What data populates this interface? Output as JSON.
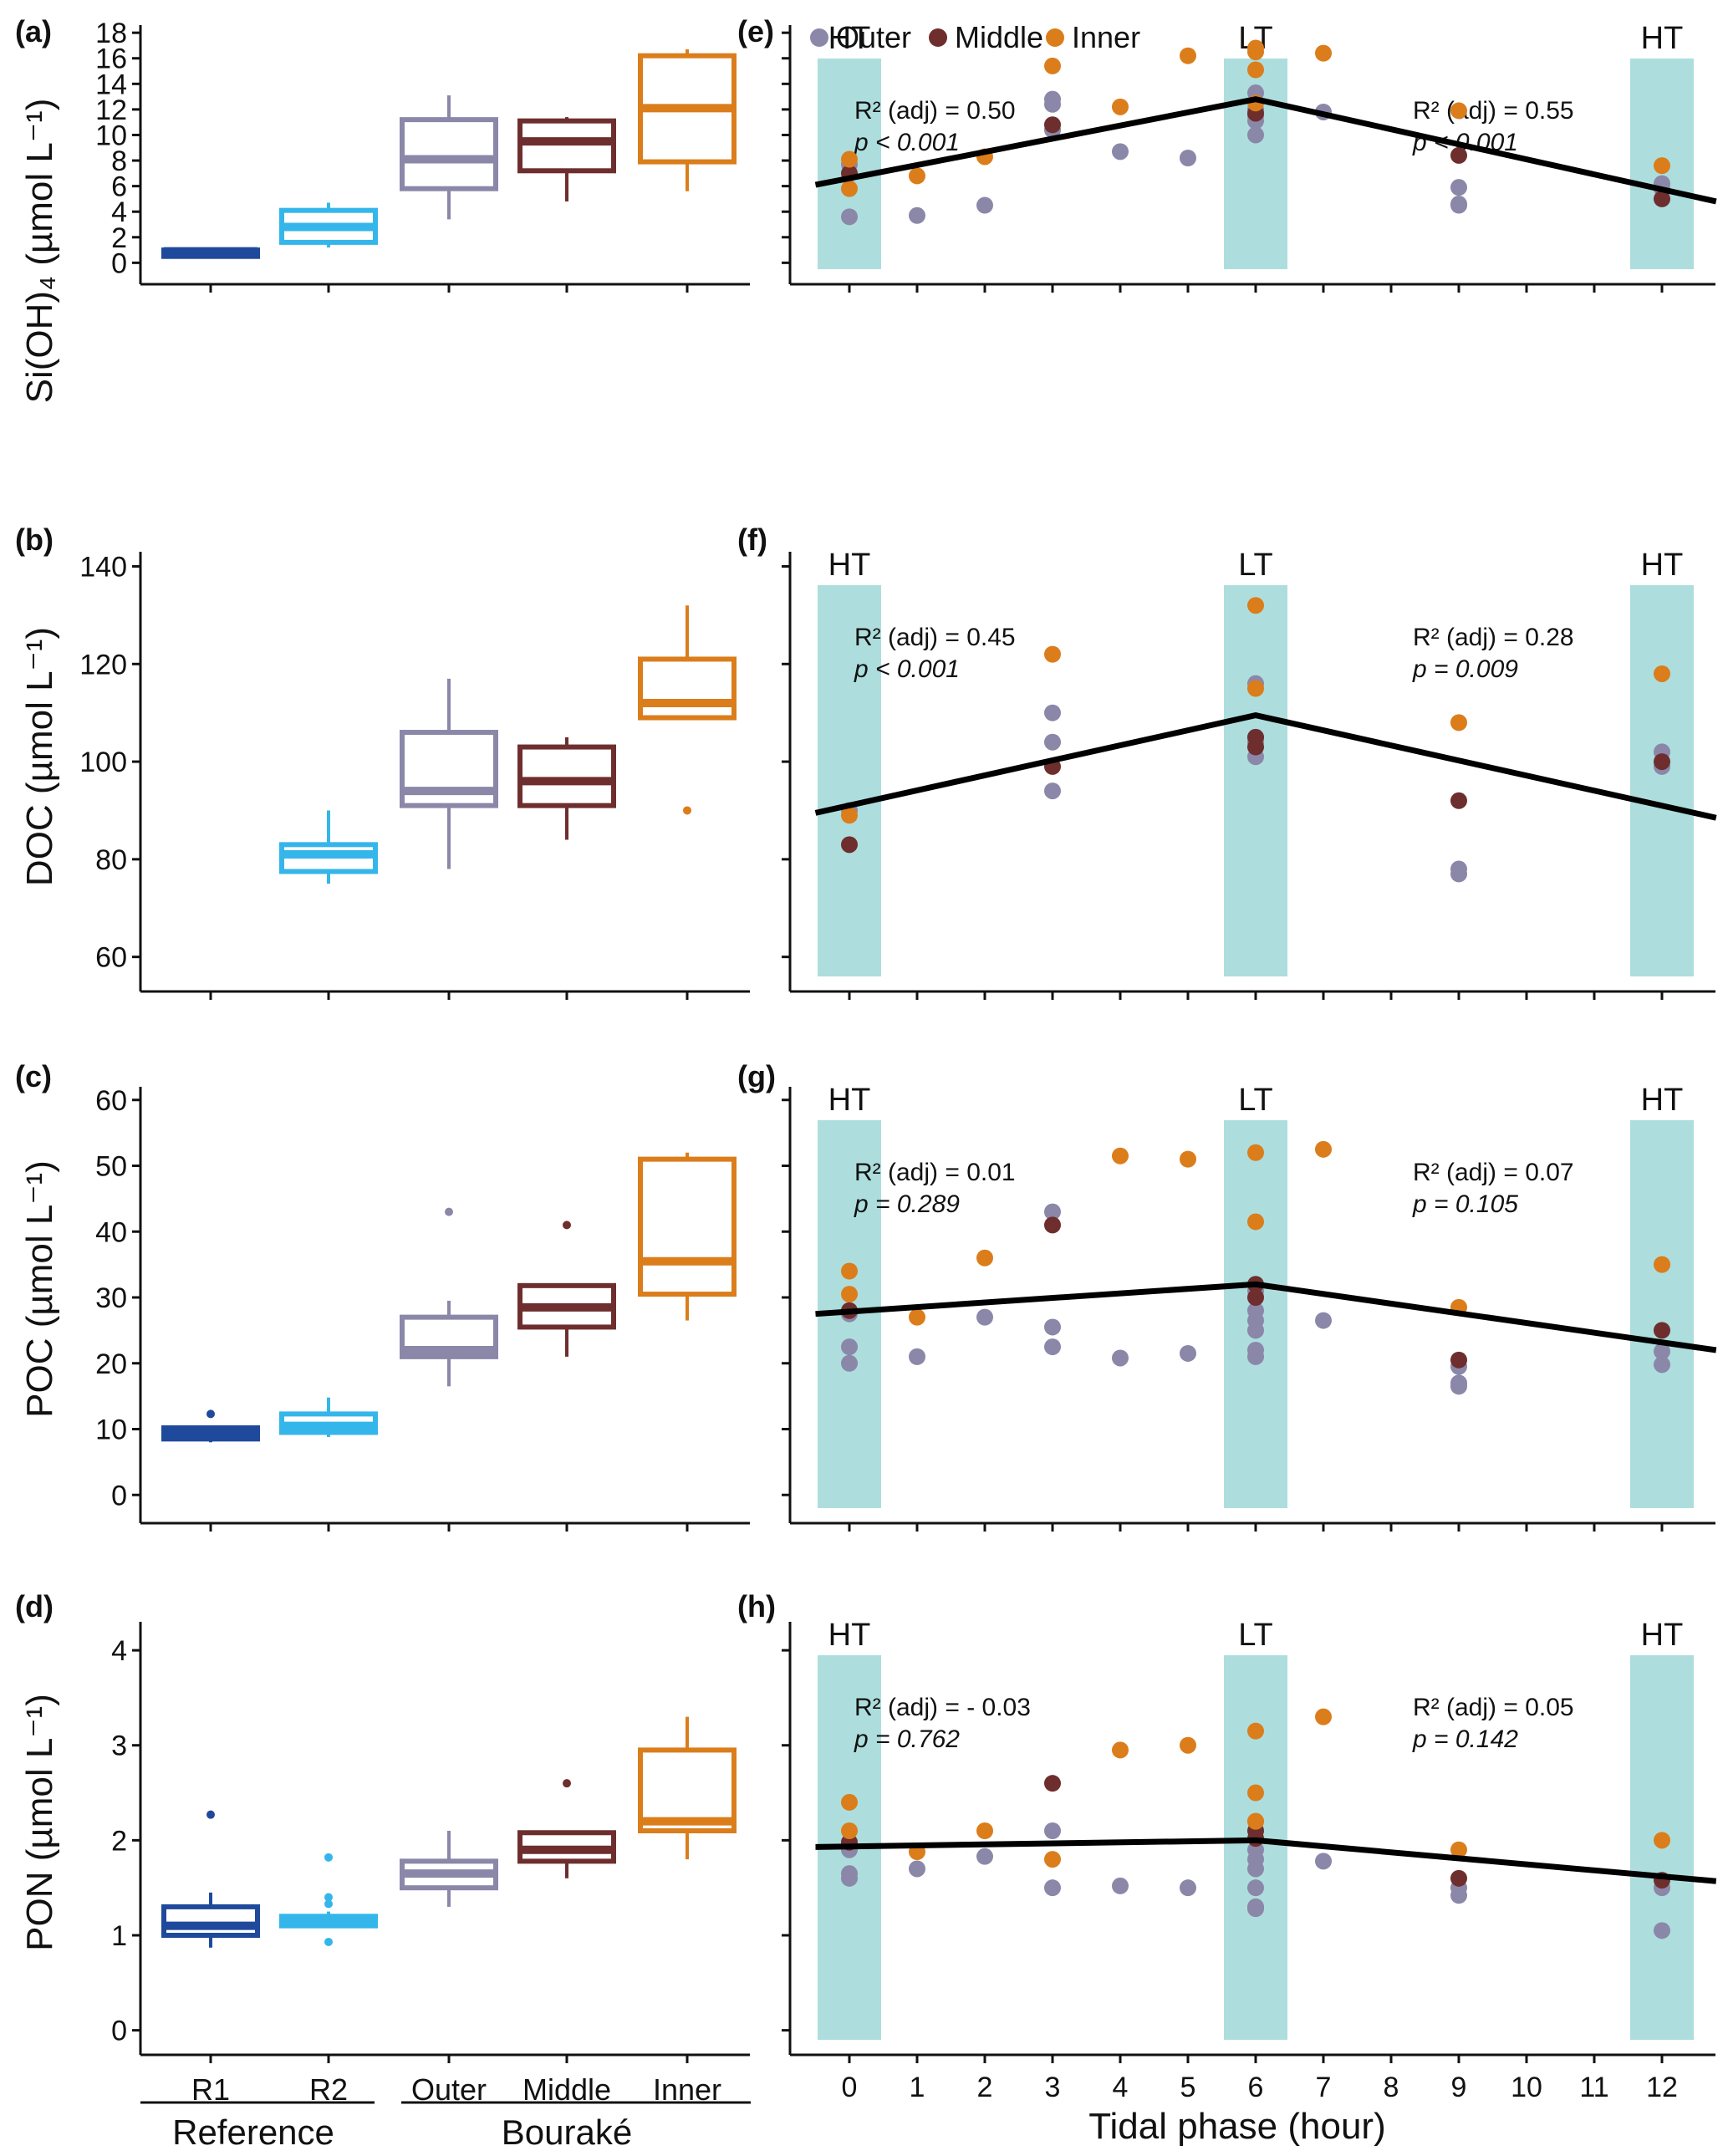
{
  "legend": {
    "entries": [
      {
        "label": "Outer",
        "color": "#8B87A9"
      },
      {
        "label": "Middle",
        "color": "#6E2E2E"
      },
      {
        "label": "Inner",
        "color": "#DB7D1B"
      }
    ]
  },
  "colors": {
    "R1": "#1F4A9C",
    "R2": "#35B6EA",
    "Outer": "#8B87A9",
    "Middle": "#6E2E2E",
    "Inner": "#DB7D1B",
    "tide_band": "#ADDEDD",
    "line": "#000000"
  },
  "box_x_labels": [
    "R1",
    "R2",
    "Outer",
    "Middle",
    "Inner"
  ],
  "group_labels": {
    "reference": "Reference",
    "bourake": "Bouraké"
  },
  "tidal_xlabel": "Tidal phase (hour)",
  "tidal_ticks": [
    "0",
    "1",
    "2",
    "3",
    "4",
    "5",
    "6",
    "7",
    "8",
    "9",
    "10",
    "11",
    "12"
  ],
  "chart_data": [
    {
      "panel": "(a)",
      "type": "box",
      "ylabel": "Si(OH)₄ (µmol L⁻¹)",
      "categories": [
        "R1",
        "R2",
        "Outer",
        "Middle",
        "Inner"
      ],
      "ylim": [
        -0.5,
        18.6
      ],
      "yticks": [
        0,
        2,
        4,
        6,
        8,
        10,
        12,
        14,
        16,
        18
      ],
      "boxes": [
        {
          "q1": 0.5,
          "median": 0.9,
          "q3": 1.0,
          "lo": 0.5,
          "hi": 1.2,
          "out": []
        },
        {
          "q1": 1.6,
          "median": 2.8,
          "q3": 4.1,
          "lo": 1.2,
          "hi": 4.7,
          "out": []
        },
        {
          "q1": 5.8,
          "median": 8.1,
          "q3": 11.2,
          "lo": 3.4,
          "hi": 13.1,
          "out": []
        },
        {
          "q1": 7.2,
          "median": 9.5,
          "q3": 11.1,
          "lo": 4.8,
          "hi": 11.4,
          "out": []
        },
        {
          "q1": 7.9,
          "median": 12.1,
          "q3": 16.2,
          "lo": 5.6,
          "hi": 16.7,
          "out": []
        }
      ]
    },
    {
      "panel": "(b)",
      "type": "box",
      "ylabel": "DOC (µmol L⁻¹)",
      "categories": [
        "R1",
        "R2",
        "Outer",
        "Middle",
        "Inner"
      ],
      "ylim": [
        56,
        143
      ],
      "yticks": [
        60,
        80,
        100,
        120,
        140
      ],
      "boxes": [
        null,
        {
          "q1": 77.5,
          "median": 81,
          "q3": 83,
          "lo": 75,
          "hi": 90,
          "out": []
        },
        {
          "q1": 91,
          "median": 94,
          "q3": 106,
          "lo": 78,
          "hi": 117,
          "out": []
        },
        {
          "q1": 91,
          "median": 96,
          "q3": 103,
          "lo": 84,
          "hi": 105,
          "out": []
        },
        {
          "q1": 109,
          "median": 112,
          "q3": 121,
          "lo": 109,
          "hi": 132,
          "out": [
            90
          ]
        }
      ]
    },
    {
      "panel": "(c)",
      "type": "box",
      "ylabel": "POC (µmol L⁻¹)",
      "categories": [
        "R1",
        "R2",
        "Outer",
        "Middle",
        "Inner"
      ],
      "ylim": [
        -2,
        62
      ],
      "yticks": [
        0,
        10,
        20,
        30,
        40,
        50,
        60
      ],
      "boxes": [
        {
          "q1": 8.5,
          "median": 9.5,
          "q3": 10.2,
          "lo": 8,
          "hi": 10.5,
          "out": [
            12.3
          ]
        },
        {
          "q1": 9.5,
          "median": 10.5,
          "q3": 12.3,
          "lo": 8.8,
          "hi": 14.8,
          "out": []
        },
        {
          "q1": 21,
          "median": 22,
          "q3": 27,
          "lo": 16.5,
          "hi": 29.5,
          "out": [
            43
          ]
        },
        {
          "q1": 25.5,
          "median": 28.5,
          "q3": 31.8,
          "lo": 21,
          "hi": 32,
          "out": [
            41
          ]
        },
        {
          "q1": 30.5,
          "median": 35.5,
          "q3": 51,
          "lo": 26.5,
          "hi": 52,
          "out": []
        }
      ]
    },
    {
      "panel": "(d)",
      "type": "box",
      "ylabel": "PON (µmol L⁻¹)",
      "categories": [
        "R1",
        "R2",
        "Outer",
        "Middle",
        "Inner"
      ],
      "ylim": [
        -0.1,
        4.3
      ],
      "yticks": [
        0,
        1,
        2,
        3,
        4
      ],
      "boxes": [
        {
          "q1": 1.0,
          "median": 1.1,
          "q3": 1.3,
          "lo": 0.87,
          "hi": 1.45,
          "out": [
            2.27
          ]
        },
        {
          "q1": 1.1,
          "median": 1.15,
          "q3": 1.2,
          "lo": 1.1,
          "hi": 1.25,
          "out": [
            1.33,
            1.4,
            1.82,
            0.93
          ]
        },
        {
          "q1": 1.5,
          "median": 1.65,
          "q3": 1.78,
          "lo": 1.3,
          "hi": 2.1,
          "out": []
        },
        {
          "q1": 1.78,
          "median": 1.9,
          "q3": 2.08,
          "lo": 1.6,
          "hi": 2.08,
          "out": [
            2.6
          ]
        },
        {
          "q1": 2.1,
          "median": 2.2,
          "q3": 2.95,
          "lo": 1.8,
          "hi": 3.3,
          "out": []
        }
      ]
    },
    {
      "panel": "(e)",
      "type": "scatter",
      "ylim": [
        -0.5,
        18.6
      ],
      "yticks": [
        0,
        2,
        4,
        6,
        8,
        10,
        12,
        14,
        16,
        18
      ],
      "band_labels": {
        "left": "HT",
        "center": "LT",
        "right": "HT"
      },
      "stats_left": {
        "r2": "R² (adj) = 0.50",
        "p": "p < 0.001"
      },
      "stats_right": {
        "r2": "R² (adj) = 0.55",
        "p": "p < 0.001"
      },
      "line": [
        [
          -0.5,
          6.1
        ],
        [
          6,
          12.8
        ],
        [
          12.8,
          4.8
        ]
      ],
      "series": [
        {
          "name": "Outer",
          "x": [
            0,
            0,
            1,
            2,
            3,
            3,
            3,
            4,
            5,
            6,
            6,
            6,
            6,
            6,
            7,
            9,
            9,
            9,
            12,
            12
          ],
          "y": [
            3.6,
            7.7,
            3.7,
            4.5,
            12.8,
            12.4,
            10.4,
            8.7,
            8.2,
            13.3,
            12.0,
            11.5,
            11.1,
            10.0,
            11.8,
            5.9,
            4.6,
            4.5,
            6.2,
            5.8
          ]
        },
        {
          "name": "Middle",
          "x": [
            0,
            3,
            6,
            9,
            12
          ],
          "y": [
            7.0,
            10.8,
            11.7,
            8.4,
            5.0
          ]
        },
        {
          "name": "Inner",
          "x": [
            0,
            0,
            1,
            2,
            3,
            4,
            5,
            6,
            6,
            6,
            6,
            7,
            9,
            12
          ],
          "y": [
            8.1,
            5.8,
            6.8,
            8.3,
            15.4,
            12.2,
            16.2,
            16.8,
            16.5,
            15.1,
            12.5,
            16.4,
            11.9,
            7.6
          ]
        }
      ]
    },
    {
      "panel": "(f)",
      "type": "scatter",
      "ylim": [
        56,
        143
      ],
      "yticks": [
        60,
        80,
        100,
        120,
        140
      ],
      "band_labels": {
        "left": "HT",
        "center": "LT",
        "right": "HT"
      },
      "stats_left": {
        "r2": "R² (adj) = 0.45",
        "p": "p < 0.001"
      },
      "stats_right": {
        "r2": "R² (adj) = 0.28",
        "p": "p = 0.009"
      },
      "line": [
        [
          -0.5,
          89.5
        ],
        [
          6,
          109.5
        ],
        [
          12.8,
          88.5
        ]
      ],
      "series": [
        {
          "name": "Outer",
          "x": [
            0,
            3,
            3,
            3,
            6,
            6,
            6,
            6,
            9,
            9,
            12,
            12
          ],
          "y": [
            90,
            110,
            104,
            94,
            116,
            105,
            104,
            101,
            78,
            77,
            102,
            99
          ]
        },
        {
          "name": "Middle",
          "x": [
            0,
            3,
            6,
            6,
            9,
            12
          ],
          "y": [
            83,
            99,
            103,
            105,
            92,
            100
          ]
        },
        {
          "name": "Inner",
          "x": [
            0,
            3,
            6,
            6,
            9,
            12
          ],
          "y": [
            89,
            122,
            132,
            115,
            108,
            118
          ]
        }
      ]
    },
    {
      "panel": "(g)",
      "type": "scatter",
      "ylim": [
        -2,
        62
      ],
      "yticks": [
        0,
        10,
        20,
        30,
        40,
        50,
        60
      ],
      "band_labels": {
        "left": "HT",
        "center": "LT",
        "right": "HT"
      },
      "stats_left": {
        "r2": "R² (adj) = 0.01",
        "p": "p = 0.289"
      },
      "stats_right": {
        "r2": "R² (adj) = 0.07",
        "p": "p = 0.105"
      },
      "line": [
        [
          -0.5,
          27.5
        ],
        [
          6,
          32
        ],
        [
          12.8,
          22
        ]
      ],
      "series": [
        {
          "name": "Outer",
          "x": [
            0,
            0,
            0,
            1,
            2,
            3,
            3,
            3,
            4,
            5,
            6,
            6,
            6,
            6,
            6,
            6,
            7,
            9,
            9,
            9,
            12,
            12
          ],
          "y": [
            27.5,
            22.5,
            20,
            21,
            27,
            43,
            25.5,
            22.5,
            20.8,
            21.5,
            31,
            28,
            26.5,
            25,
            22,
            21,
            26.5,
            19.5,
            17,
            16.5,
            21.8,
            19.8
          ]
        },
        {
          "name": "Middle",
          "x": [
            0,
            3,
            6,
            6,
            9,
            12
          ],
          "y": [
            28,
            41,
            32,
            30,
            20.5,
            25
          ]
        },
        {
          "name": "Inner",
          "x": [
            0,
            0,
            1,
            2,
            4,
            5,
            6,
            6,
            7,
            9,
            12
          ],
          "y": [
            34,
            30.5,
            27,
            36,
            51.5,
            51,
            52,
            41.5,
            52.5,
            28.5,
            35
          ]
        }
      ]
    },
    {
      "panel": "(h)",
      "type": "scatter",
      "ylim": [
        -0.1,
        4.3
      ],
      "yticks": [
        0,
        1,
        2,
        3,
        4
      ],
      "band_labels": {
        "left": "HT",
        "center": "LT",
        "right": "HT"
      },
      "stats_left": {
        "r2": "R² (adj) = - 0.03",
        "p": "p = 0.762"
      },
      "stats_right": {
        "r2": "R² (adj) = 0.05",
        "p": "p = 0.142"
      },
      "line": [
        [
          -0.5,
          1.93
        ],
        [
          6,
          2.0
        ],
        [
          12.8,
          1.57
        ]
      ],
      "series": [
        {
          "name": "Outer",
          "x": [
            0,
            0,
            0,
            1,
            2,
            3,
            3,
            4,
            5,
            6,
            6,
            6,
            6,
            6,
            6,
            7,
            9,
            9,
            12,
            12
          ],
          "y": [
            1.9,
            1.65,
            1.6,
            1.7,
            1.83,
            2.1,
            1.5,
            1.52,
            1.5,
            1.9,
            1.8,
            1.7,
            1.5,
            1.3,
            1.28,
            1.78,
            1.5,
            1.42,
            1.5,
            1.05
          ]
        },
        {
          "name": "Middle",
          "x": [
            0,
            3,
            6,
            6,
            9,
            12
          ],
          "y": [
            1.98,
            2.6,
            2.1,
            2.02,
            1.6,
            1.58
          ]
        },
        {
          "name": "Inner",
          "x": [
            0,
            0,
            1,
            2,
            3,
            4,
            5,
            6,
            6,
            6,
            6,
            7,
            9,
            12
          ],
          "y": [
            2.4,
            2.1,
            1.88,
            2.1,
            1.8,
            2.95,
            3.0,
            3.15,
            2.5,
            2.2,
            2.2,
            3.3,
            1.9,
            2.0
          ]
        }
      ]
    }
  ]
}
